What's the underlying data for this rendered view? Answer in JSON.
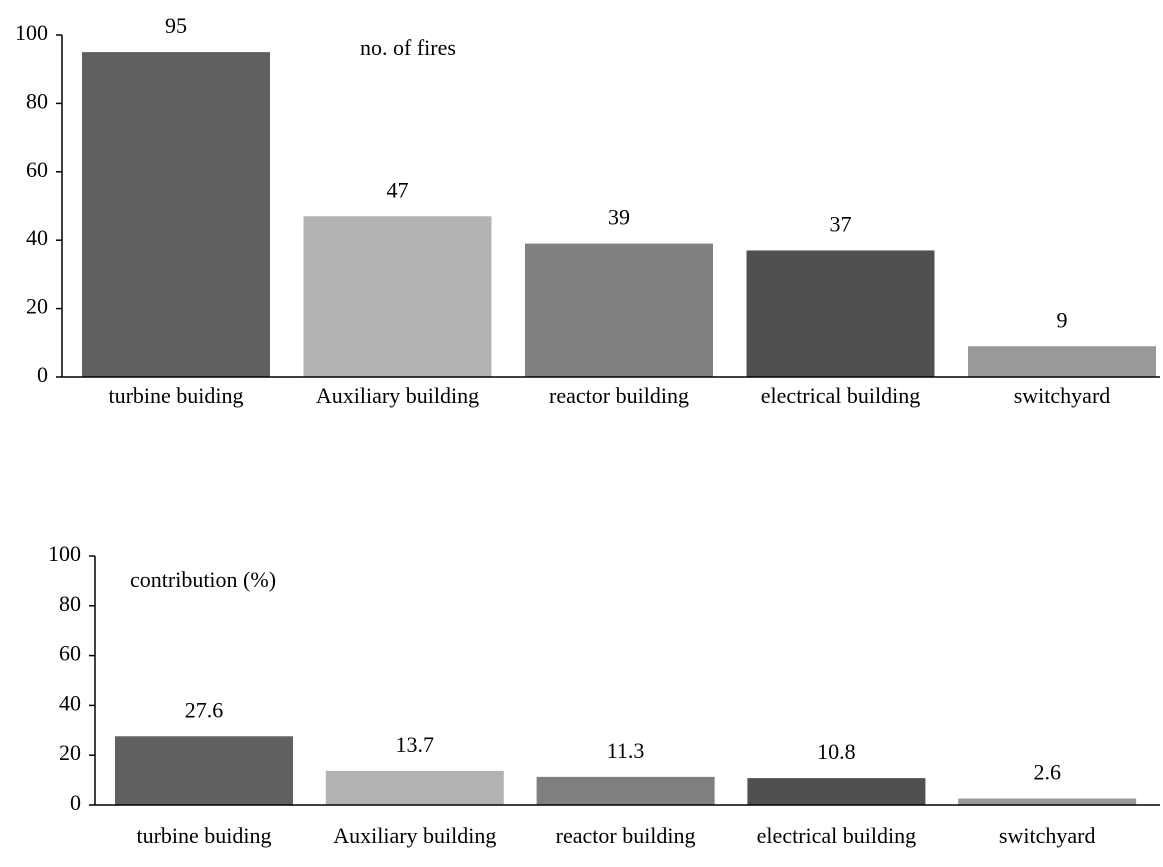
{
  "chart_data": [
    {
      "type": "bar",
      "annotation": "no. of fires",
      "categories": [
        "turbine buiding",
        "Auxiliary building",
        "reactor building",
        "electrical building",
        "switchyard"
      ],
      "values": [
        95,
        47,
        39,
        37,
        9
      ],
      "colors": [
        "#606060",
        "#b3b3b3",
        "#808080",
        "#505050",
        "#999999"
      ],
      "ylim": [
        0,
        100
      ],
      "yticks": [
        0,
        20,
        40,
        60,
        80,
        100
      ]
    },
    {
      "type": "bar",
      "annotation": "contribution (%)",
      "categories": [
        "turbine buiding",
        "Auxiliary building",
        "reactor building",
        "electrical building",
        "switchyard"
      ],
      "values": [
        27.6,
        13.7,
        11.3,
        10.8,
        2.6
      ],
      "colors": [
        "#606060",
        "#b3b3b3",
        "#808080",
        "#505050",
        "#999999"
      ],
      "ylim": [
        0,
        100
      ],
      "yticks": [
        0,
        20,
        40,
        60,
        80,
        100
      ]
    }
  ]
}
